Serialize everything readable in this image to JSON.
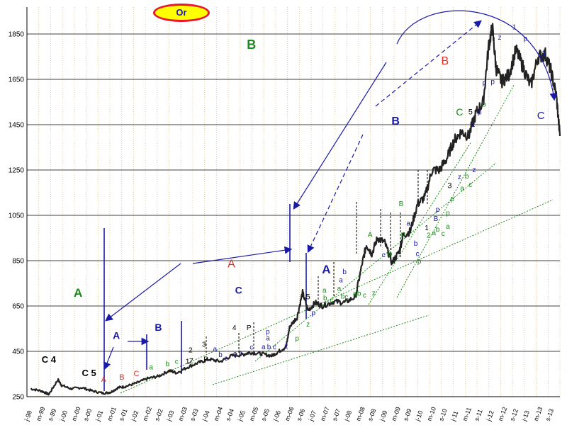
{
  "badge": {
    "label": "Or"
  },
  "chart_data": {
    "type": "line",
    "title": "",
    "xlabel": "",
    "ylabel": "",
    "ylim": [
      250,
      1950
    ],
    "yticks": [
      250,
      450,
      650,
      850,
      1050,
      1250,
      1450,
      1650,
      1850
    ],
    "grid": {
      "horizontal": true,
      "vertical": "dotted"
    },
    "xlim": [
      1998.9,
      2013.5
    ],
    "xtick_labels": [
      "j-98",
      "m-99",
      "s-99",
      "j-00",
      "m-00",
      "s-00",
      "j-01",
      "m-01",
      "s-01",
      "j-02",
      "m-02",
      "s-02",
      "j-03",
      "m-03",
      "s-03",
      "j-04",
      "m-04",
      "s-04",
      "j-05",
      "m-05",
      "s-05",
      "j-06",
      "m-06",
      "s-06",
      "j-07",
      "m-07",
      "s-07",
      "j-08",
      "m-08",
      "s-08",
      "j-09",
      "m-09",
      "s-09",
      "j-10",
      "m-10",
      "s-10",
      "j-11",
      "m-11",
      "s-11",
      "j-12",
      "m-12",
      "s-12",
      "j-13",
      "m-13",
      "s-13"
    ],
    "series": [
      {
        "x": [
          1999.0,
          1999.3,
          1999.5,
          1999.75,
          1999.85,
          2000.1,
          2000.4,
          2000.7,
          2001.0,
          2001.2,
          2001.4,
          2001.6,
          2001.9,
          2002.2,
          2002.5,
          2002.8,
          2003.0,
          2003.3,
          2003.6,
          2003.9,
          2004.2,
          2004.5,
          2004.8,
          2005.0,
          2005.3,
          2005.6,
          2005.8,
          2006.0,
          2006.1,
          2006.3,
          2006.45,
          2006.6,
          2006.8,
          2007.0,
          2007.3,
          2007.6,
          2007.9,
          2008.1,
          2008.2,
          2008.35,
          2008.5,
          2008.7,
          2008.9,
          2009.1,
          2009.2,
          2009.4,
          2009.6,
          2009.8,
          2010.0,
          2010.2,
          2010.4,
          2010.6,
          2010.8,
          2011.0,
          2011.2,
          2011.4,
          2011.55,
          2011.65,
          2011.75,
          2011.9,
          2012.1,
          2012.3,
          2012.5,
          2012.7,
          2012.9,
          2013.1,
          2013.25,
          2013.4,
          2013.5
        ],
        "values": [
          285,
          275,
          260,
          325,
          300,
          285,
          290,
          275,
          265,
          270,
          290,
          295,
          310,
          330,
          340,
          365,
          355,
          380,
          400,
          415,
          405,
          430,
          435,
          445,
          440,
          430,
          450,
          470,
          560,
          600,
          710,
          630,
          665,
          650,
          670,
          665,
          690,
          850,
          920,
          880,
          950,
          930,
          840,
          890,
          960,
          980,
          1100,
          1130,
          1250,
          1250,
          1300,
          1380,
          1420,
          1400,
          1500,
          1550,
          1800,
          1880,
          1700,
          1640,
          1670,
          1780,
          1700,
          1620,
          1750,
          1760,
          1690,
          1580,
          1400
        ]
      }
    ],
    "annotations": [
      {
        "text": "C 4",
        "x": 1999.5,
        "y": 400,
        "color": "#000000",
        "size": 13,
        "bold": true
      },
      {
        "text": "C 5",
        "x": 2000.6,
        "y": 340,
        "color": "#000000",
        "size": 13,
        "bold": true
      },
      {
        "text": "A",
        "x": 2000.3,
        "y": 690,
        "color": "#1a8a1a",
        "size": 17,
        "bold": true
      },
      {
        "text": "A",
        "x": 2001.0,
        "y": 315,
        "color": "#e0302a",
        "size": 10,
        "bold": false
      },
      {
        "text": "B",
        "x": 2001.5,
        "y": 325,
        "color": "#e0302a",
        "size": 11,
        "bold": false
      },
      {
        "text": "C",
        "x": 2001.9,
        "y": 340,
        "color": "#e0302a",
        "size": 11,
        "bold": false
      },
      {
        "text": "a",
        "x": 2002.3,
        "y": 370,
        "color": "#1a8a1a",
        "size": 10,
        "bold": false
      },
      {
        "text": "b",
        "x": 2002.75,
        "y": 385,
        "color": "#1a8a1a",
        "size": 10,
        "bold": false
      },
      {
        "text": "c",
        "x": 2003.0,
        "y": 395,
        "color": "#1a8a1a",
        "size": 10,
        "bold": false
      },
      {
        "text": "A",
        "x": 2001.35,
        "y": 505,
        "color": "#1a1aa8",
        "size": 14,
        "bold": true
      },
      {
        "text": "B",
        "x": 2002.5,
        "y": 540,
        "color": "#1a1aa8",
        "size": 14,
        "bold": true
      },
      {
        "text": "1",
        "x": 2003.3,
        "y": 395,
        "color": "#000000",
        "size": 10,
        "bold": false
      },
      {
        "text": "Z",
        "x": 2003.4,
        "y": 397,
        "color": "#000000",
        "size": 10,
        "bold": false
      },
      {
        "text": "2",
        "x": 2003.38,
        "y": 445,
        "color": "#000000",
        "size": 10,
        "bold": false
      },
      {
        "text": "3",
        "x": 2003.75,
        "y": 470,
        "color": "#000000",
        "size": 10,
        "bold": false
      },
      {
        "text": "P",
        "x": 2003.8,
        "y": 405,
        "color": "#000000",
        "size": 10,
        "bold": false
      },
      {
        "text": "a",
        "x": 2004.05,
        "y": 450,
        "color": "#1a1aa8",
        "size": 10,
        "bold": false
      },
      {
        "text": "b",
        "x": 2004.2,
        "y": 425,
        "color": "#1a1aa8",
        "size": 10,
        "bold": false
      },
      {
        "text": "c",
        "x": 2004.35,
        "y": 410,
        "color": "#1a1aa8",
        "size": 10,
        "bold": false
      },
      {
        "text": "a",
        "x": 2004.6,
        "y": 430,
        "color": "#1a1aa8",
        "size": 10,
        "bold": false
      },
      {
        "text": "b",
        "x": 2004.75,
        "y": 432,
        "color": "#1a1aa8",
        "size": 10,
        "bold": false
      },
      {
        "text": "4",
        "x": 2004.58,
        "y": 543,
        "color": "#000000",
        "size": 10,
        "bold": false
      },
      {
        "text": "P",
        "x": 2004.98,
        "y": 543,
        "color": "#000000",
        "size": 10,
        "bold": false
      },
      {
        "text": "C",
        "x": 2004.7,
        "y": 705,
        "color": "#1a1aa8",
        "size": 14,
        "bold": true
      },
      {
        "text": "c",
        "x": 2005.05,
        "y": 458,
        "color": "#1a1aa8",
        "size": 10,
        "bold": false
      },
      {
        "text": "a",
        "x": 2005.38,
        "y": 460,
        "color": "#1a1aa8",
        "size": 10,
        "bold": false
      },
      {
        "text": "b",
        "x": 2005.53,
        "y": 460,
        "color": "#1a1aa8",
        "size": 10,
        "bold": false
      },
      {
        "text": "c",
        "x": 2005.68,
        "y": 460,
        "color": "#1a1aa8",
        "size": 10,
        "bold": false
      },
      {
        "text": "p",
        "x": 2005.5,
        "y": 527,
        "color": "#1a1aa8",
        "size": 10,
        "bold": false
      },
      {
        "text": "a",
        "x": 2005.5,
        "y": 498,
        "color": "#1a1aa8",
        "size": 10,
        "bold": false
      },
      {
        "text": "z",
        "x": 2006.0,
        "y": 463,
        "color": "#1a1aa8",
        "size": 10,
        "bold": false
      },
      {
        "text": "p",
        "x": 2006.3,
        "y": 497,
        "color": "#1a8a1a",
        "size": 10,
        "bold": false
      },
      {
        "text": "z",
        "x": 2006.6,
        "y": 560,
        "color": "#1a8a1a",
        "size": 10,
        "bold": false
      },
      {
        "text": "p",
        "x": 2006.75,
        "y": 610,
        "color": "#1a1aa8",
        "size": 10,
        "bold": false
      },
      {
        "text": "5",
        "x": 2006.6,
        "y": 680,
        "color": "#000000",
        "size": 11,
        "bold": false
      },
      {
        "text": "A",
        "x": 2007.1,
        "y": 793,
        "color": "#1a1aa8",
        "size": 17,
        "bold": true
      },
      {
        "text": "a",
        "x": 2007.05,
        "y": 710,
        "color": "#1a8a1a",
        "size": 10,
        "bold": false
      },
      {
        "text": "b",
        "x": 2007.07,
        "y": 675,
        "color": "#1a8a1a",
        "size": 10,
        "bold": false
      },
      {
        "text": "c",
        "x": 2007.25,
        "y": 665,
        "color": "#1a8a1a",
        "size": 10,
        "bold": false
      },
      {
        "text": "a",
        "x": 2007.45,
        "y": 717,
        "color": "#1a8a1a",
        "size": 10,
        "bold": false
      },
      {
        "text": "b",
        "x": 2007.55,
        "y": 683,
        "color": "#1a8a1a",
        "size": 10,
        "bold": false
      },
      {
        "text": "c",
        "x": 2007.65,
        "y": 680,
        "color": "#1a8a1a",
        "size": 10,
        "bold": false
      },
      {
        "text": "a",
        "x": 2007.88,
        "y": 695,
        "color": "#1a8a1a",
        "size": 10,
        "bold": false
      },
      {
        "text": "b",
        "x": 2008.0,
        "y": 695,
        "color": "#1a8a1a",
        "size": 10,
        "bold": false
      },
      {
        "text": "c",
        "x": 2008.15,
        "y": 687,
        "color": "#1a8a1a",
        "size": 10,
        "bold": false
      },
      {
        "text": "z",
        "x": 2008.4,
        "y": 697,
        "color": "#1a8a1a",
        "size": 10,
        "bold": false
      },
      {
        "text": "a",
        "x": 2007.5,
        "y": 755,
        "color": "#1a1aa8",
        "size": 10,
        "bold": false
      },
      {
        "text": "b",
        "x": 2007.6,
        "y": 790,
        "color": "#1a1aa8",
        "size": 10,
        "bold": false
      },
      {
        "text": "A",
        "x": 2008.3,
        "y": 955,
        "color": "#1a8a1a",
        "size": 10,
        "bold": false
      },
      {
        "text": "c",
        "x": 2008.67,
        "y": 865,
        "color": "#1a1aa8",
        "size": 10,
        "bold": false
      },
      {
        "text": "p",
        "x": 2008.85,
        "y": 870,
        "color": "#1a8a1a",
        "size": 10,
        "bold": false
      },
      {
        "text": "B",
        "x": 2009.15,
        "y": 1090,
        "color": "#1a8a1a",
        "size": 10,
        "bold": false
      },
      {
        "text": "p",
        "x": 2009.2,
        "y": 958,
        "color": "#1a8a1a",
        "size": 10,
        "bold": false
      },
      {
        "text": "a",
        "x": 2009.35,
        "y": 1005,
        "color": "#1a1aa8",
        "size": 10,
        "bold": false
      },
      {
        "text": "b",
        "x": 2009.55,
        "y": 915,
        "color": "#1a1aa8",
        "size": 10,
        "bold": false
      },
      {
        "text": "c",
        "x": 2009.6,
        "y": 870,
        "color": "#1a1aa8",
        "size": 10,
        "bold": false
      },
      {
        "text": "p",
        "x": 2009.65,
        "y": 838,
        "color": "#1a8a1a",
        "size": 10,
        "bold": false
      },
      {
        "text": "1",
        "x": 2009.85,
        "y": 985,
        "color": "#000000",
        "size": 10,
        "bold": false
      },
      {
        "text": "2",
        "x": 2009.9,
        "y": 952,
        "color": "#1a8a1a",
        "size": 10,
        "bold": false
      },
      {
        "text": "a",
        "x": 2010.05,
        "y": 963,
        "color": "#1a8a1a",
        "size": 10,
        "bold": false
      },
      {
        "text": "b",
        "x": 2010.15,
        "y": 978,
        "color": "#1a8a1a",
        "size": 10,
        "bold": false
      },
      {
        "text": "c",
        "x": 2010.3,
        "y": 960,
        "color": "#1a8a1a",
        "size": 10,
        "bold": false
      },
      {
        "text": "p",
        "x": 2010.15,
        "y": 1065,
        "color": "#1a1aa8",
        "size": 10,
        "bold": false
      },
      {
        "text": "B",
        "x": 2010.1,
        "y": 1025,
        "color": "#1a1aa8",
        "size": 10,
        "bold": false
      },
      {
        "text": "p",
        "x": 2010.43,
        "y": 1050,
        "color": "#1a8a1a",
        "size": 10,
        "bold": false
      },
      {
        "text": "a",
        "x": 2010.43,
        "y": 990,
        "color": "#1a8a1a",
        "size": 10,
        "bold": false
      },
      {
        "text": "3",
        "x": 2010.48,
        "y": 1170,
        "color": "#000000",
        "size": 11,
        "bold": false
      },
      {
        "text": "p",
        "x": 2010.55,
        "y": 1113,
        "color": "#1a8a1a",
        "size": 10,
        "bold": false
      },
      {
        "text": "z",
        "x": 2010.75,
        "y": 1210,
        "color": "#1a1aa8",
        "size": 10,
        "bold": false
      },
      {
        "text": "a",
        "x": 2010.82,
        "y": 1160,
        "color": "#1a8a1a",
        "size": 10,
        "bold": false
      },
      {
        "text": "b",
        "x": 2010.95,
        "y": 1213,
        "color": "#1a8a1a",
        "size": 10,
        "bold": false
      },
      {
        "text": "c",
        "x": 2011.05,
        "y": 1175,
        "color": "#1a8a1a",
        "size": 10,
        "bold": false
      },
      {
        "text": "z",
        "x": 2011.15,
        "y": 1240,
        "color": "#1a1aa8",
        "size": 10,
        "bold": false
      },
      {
        "text": "C",
        "x": 2010.75,
        "y": 1490,
        "color": "#1a8a1a",
        "size": 14,
        "bold": false
      },
      {
        "text": "5",
        "x": 2011.05,
        "y": 1495,
        "color": "#000000",
        "size": 11,
        "bold": false
      },
      {
        "text": "z",
        "x": 2011.13,
        "y": 1440,
        "color": "#1a1aa8",
        "size": 10,
        "bold": false
      },
      {
        "text": "p",
        "x": 2011.3,
        "y": 1495,
        "color": "#1a1aa8",
        "size": 10,
        "bold": false
      },
      {
        "text": "b",
        "x": 2011.42,
        "y": 1530,
        "color": "#1a8a1a",
        "size": 10,
        "bold": false
      },
      {
        "text": "p",
        "x": 2011.43,
        "y": 1625,
        "color": "#1a1aa8",
        "size": 10,
        "bold": false
      },
      {
        "text": "p",
        "x": 2011.66,
        "y": 1630,
        "color": "#1a1aa8",
        "size": 10,
        "bold": false
      },
      {
        "text": "z",
        "x": 2011.85,
        "y": 1825,
        "color": "#1a1aa8",
        "size": 10,
        "bold": false
      },
      {
        "text": "1",
        "x": 2012.25,
        "y": 1870,
        "color": "#1a1aa8",
        "size": 10,
        "bold": false
      },
      {
        "text": "p",
        "x": 2012.55,
        "y": 1820,
        "color": "#1a1aa8",
        "size": 10,
        "bold": false
      },
      {
        "text": "3",
        "x": 2013.05,
        "y": 1750,
        "color": "#1a1aa8",
        "size": 11,
        "bold": false
      },
      {
        "text": "C",
        "x": 2012.98,
        "y": 1475,
        "color": "#1a1aa8",
        "size": 15,
        "bold": false
      },
      {
        "text": "B",
        "x": 2005.05,
        "y": 1785,
        "color": "#1a8a1a",
        "size": 18,
        "bold": true
      },
      {
        "text": "B",
        "x": 2009.0,
        "y": 1450,
        "color": "#1a1aa8",
        "size": 16,
        "bold": true
      },
      {
        "text": "B",
        "x": 2010.35,
        "y": 1715,
        "color": "#e0302a",
        "size": 16,
        "bold": false
      },
      {
        "text": "A",
        "x": 2004.5,
        "y": 820,
        "color": "#e0302a",
        "size": 16,
        "bold": false
      }
    ]
  }
}
